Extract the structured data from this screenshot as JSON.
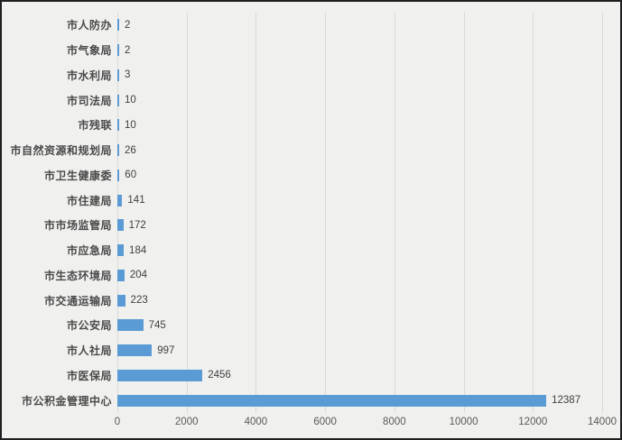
{
  "chart_data": {
    "type": "bar",
    "orientation": "horizontal",
    "title": "",
    "xlabel": "",
    "ylabel": "",
    "categories": [
      "市人防办",
      "市气象局",
      "市水利局",
      "市司法局",
      "市残联",
      "市自然资源和规划局",
      "市卫生健康委",
      "市住建局",
      "市市场监管局",
      "市应急局",
      "市生态环境局",
      "市交通运输局",
      "市公安局",
      "市人社局",
      "市医保局",
      "市公积金管理中心"
    ],
    "values": [
      2,
      2,
      3,
      10,
      10,
      26,
      60,
      141,
      172,
      184,
      204,
      223,
      745,
      997,
      2456,
      12387
    ],
    "data_labels": [
      "2",
      "2",
      "3",
      "10",
      "10",
      "26",
      "60",
      "141",
      "172",
      "184",
      "204",
      "223",
      "745",
      "997",
      "2456",
      "12387"
    ],
    "xlim": [
      0,
      14000
    ],
    "x_ticks": [
      0,
      2000,
      4000,
      6000,
      8000,
      10000,
      12000,
      14000
    ],
    "x_tick_labels": [
      "0",
      "2000",
      "4000",
      "6000",
      "8000",
      "10000",
      "12000",
      "14000"
    ],
    "grid": "vertical-on",
    "legend": "none",
    "colors": {
      "bar": "#5B9BD5",
      "background": "#F0F0EF",
      "gridline": "#D9D9D9",
      "category_text": "#4a4a4a",
      "value_text": "#404040",
      "tick_text": "#595959",
      "frame_border": "#1f1f1f"
    }
  }
}
